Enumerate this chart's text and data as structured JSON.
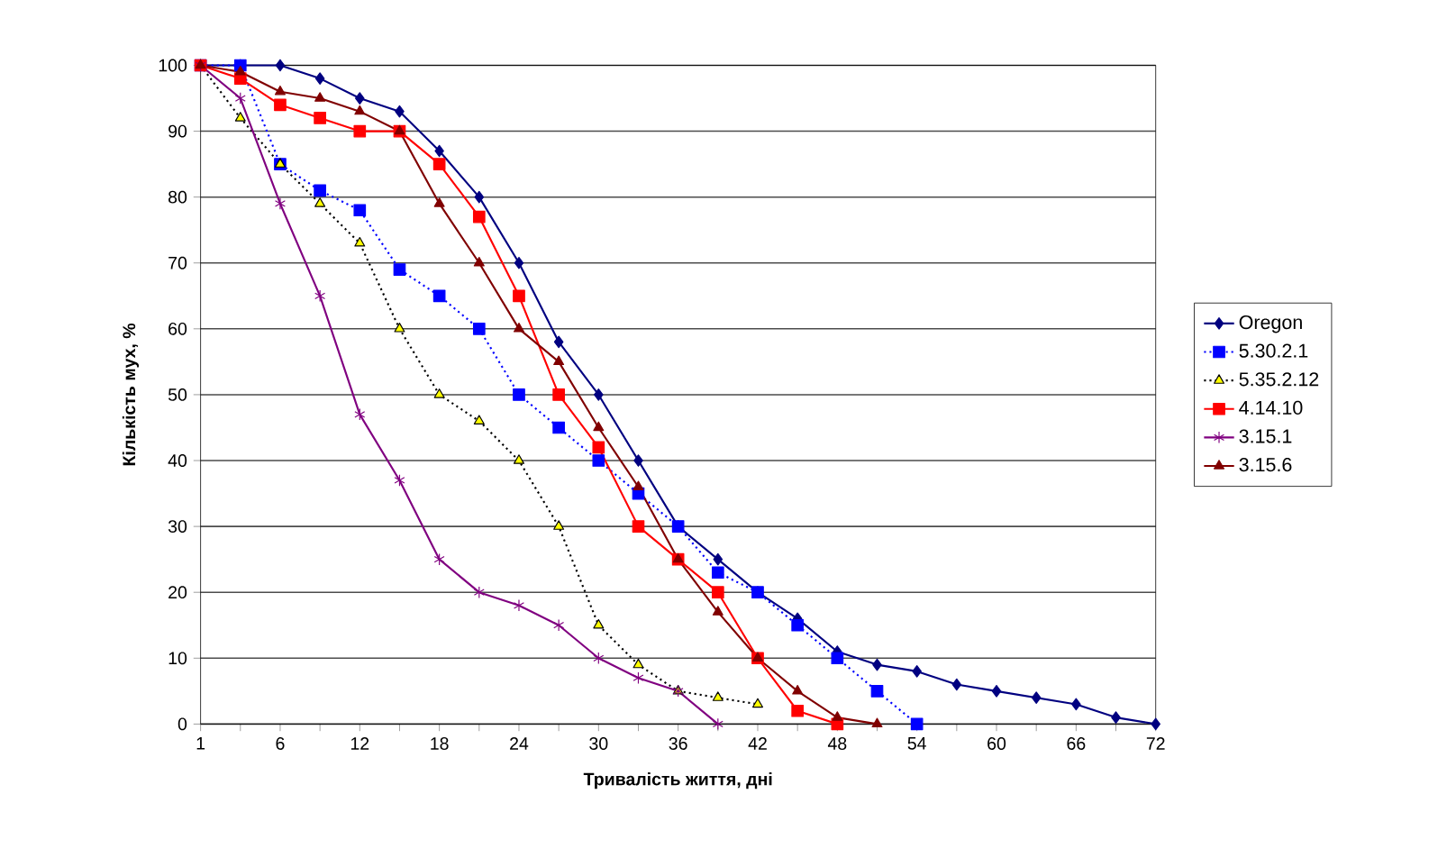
{
  "chart_data": {
    "type": "line",
    "xlabel": "Тривалість життя, дні",
    "ylabel": "Кількість мух, %",
    "categories": [
      "1",
      null,
      "6",
      null,
      "12",
      null,
      "18",
      null,
      "24",
      null,
      "30",
      null,
      "36",
      null,
      "42",
      null,
      "48",
      null,
      "54",
      null,
      "60",
      null,
      "66",
      null,
      "72"
    ],
    "ylim": [
      0,
      100
    ],
    "yticks": [
      0,
      10,
      20,
      30,
      40,
      50,
      60,
      70,
      80,
      90,
      100
    ],
    "grid": "y",
    "legend": "right",
    "series": [
      {
        "name": "Oregon",
        "color": "#000080",
        "marker": "diamond",
        "line_style": "solid",
        "values": [
          100,
          100,
          100,
          98,
          95,
          93,
          87,
          80,
          70,
          58,
          50,
          40,
          30,
          25,
          20,
          16,
          11,
          9,
          8,
          6,
          5,
          4,
          3,
          1,
          0
        ]
      },
      {
        "name": "5.30.2.1",
        "color": "#0000ff",
        "marker": "square",
        "line_style": "dotted",
        "values": [
          100,
          100,
          85,
          81,
          78,
          69,
          65,
          60,
          50,
          45,
          40,
          35,
          30,
          23,
          20,
          15,
          10,
          5,
          0,
          null,
          null,
          null,
          null,
          null,
          null
        ]
      },
      {
        "name": "5.35.2.12",
        "color": "#ffff00",
        "marker": "triangle",
        "line_style": "dotted",
        "values": [
          100,
          92,
          85,
          79,
          73,
          60,
          50,
          46,
          40,
          30,
          15,
          9,
          5,
          4,
          3,
          null,
          null,
          null,
          null,
          null,
          null,
          null,
          null,
          null,
          null
        ]
      },
      {
        "name": "4.14.10",
        "color": "#ff0000",
        "marker": "square",
        "line_style": "solid",
        "values": [
          100,
          98,
          94,
          92,
          90,
          90,
          85,
          77,
          65,
          50,
          42,
          30,
          25,
          20,
          10,
          2,
          0,
          null,
          null,
          null,
          null,
          null,
          null,
          null,
          null
        ]
      },
      {
        "name": "3.15.1",
        "color": "#800080",
        "marker": "cross",
        "line_style": "solid",
        "values": [
          100,
          95,
          79,
          65,
          47,
          37,
          25,
          20,
          18,
          15,
          10,
          7,
          5,
          0,
          null,
          null,
          null,
          null,
          null,
          null,
          null,
          null,
          null,
          null,
          null
        ]
      },
      {
        "name": "3.15.6",
        "color": "#800000",
        "marker": "triangle",
        "line_style": "solid",
        "values": [
          100,
          99,
          96,
          95,
          93,
          90,
          79,
          70,
          60,
          55,
          45,
          36,
          25,
          17,
          10,
          5,
          1,
          0,
          null,
          null,
          null,
          null,
          null,
          null,
          null
        ]
      }
    ]
  }
}
